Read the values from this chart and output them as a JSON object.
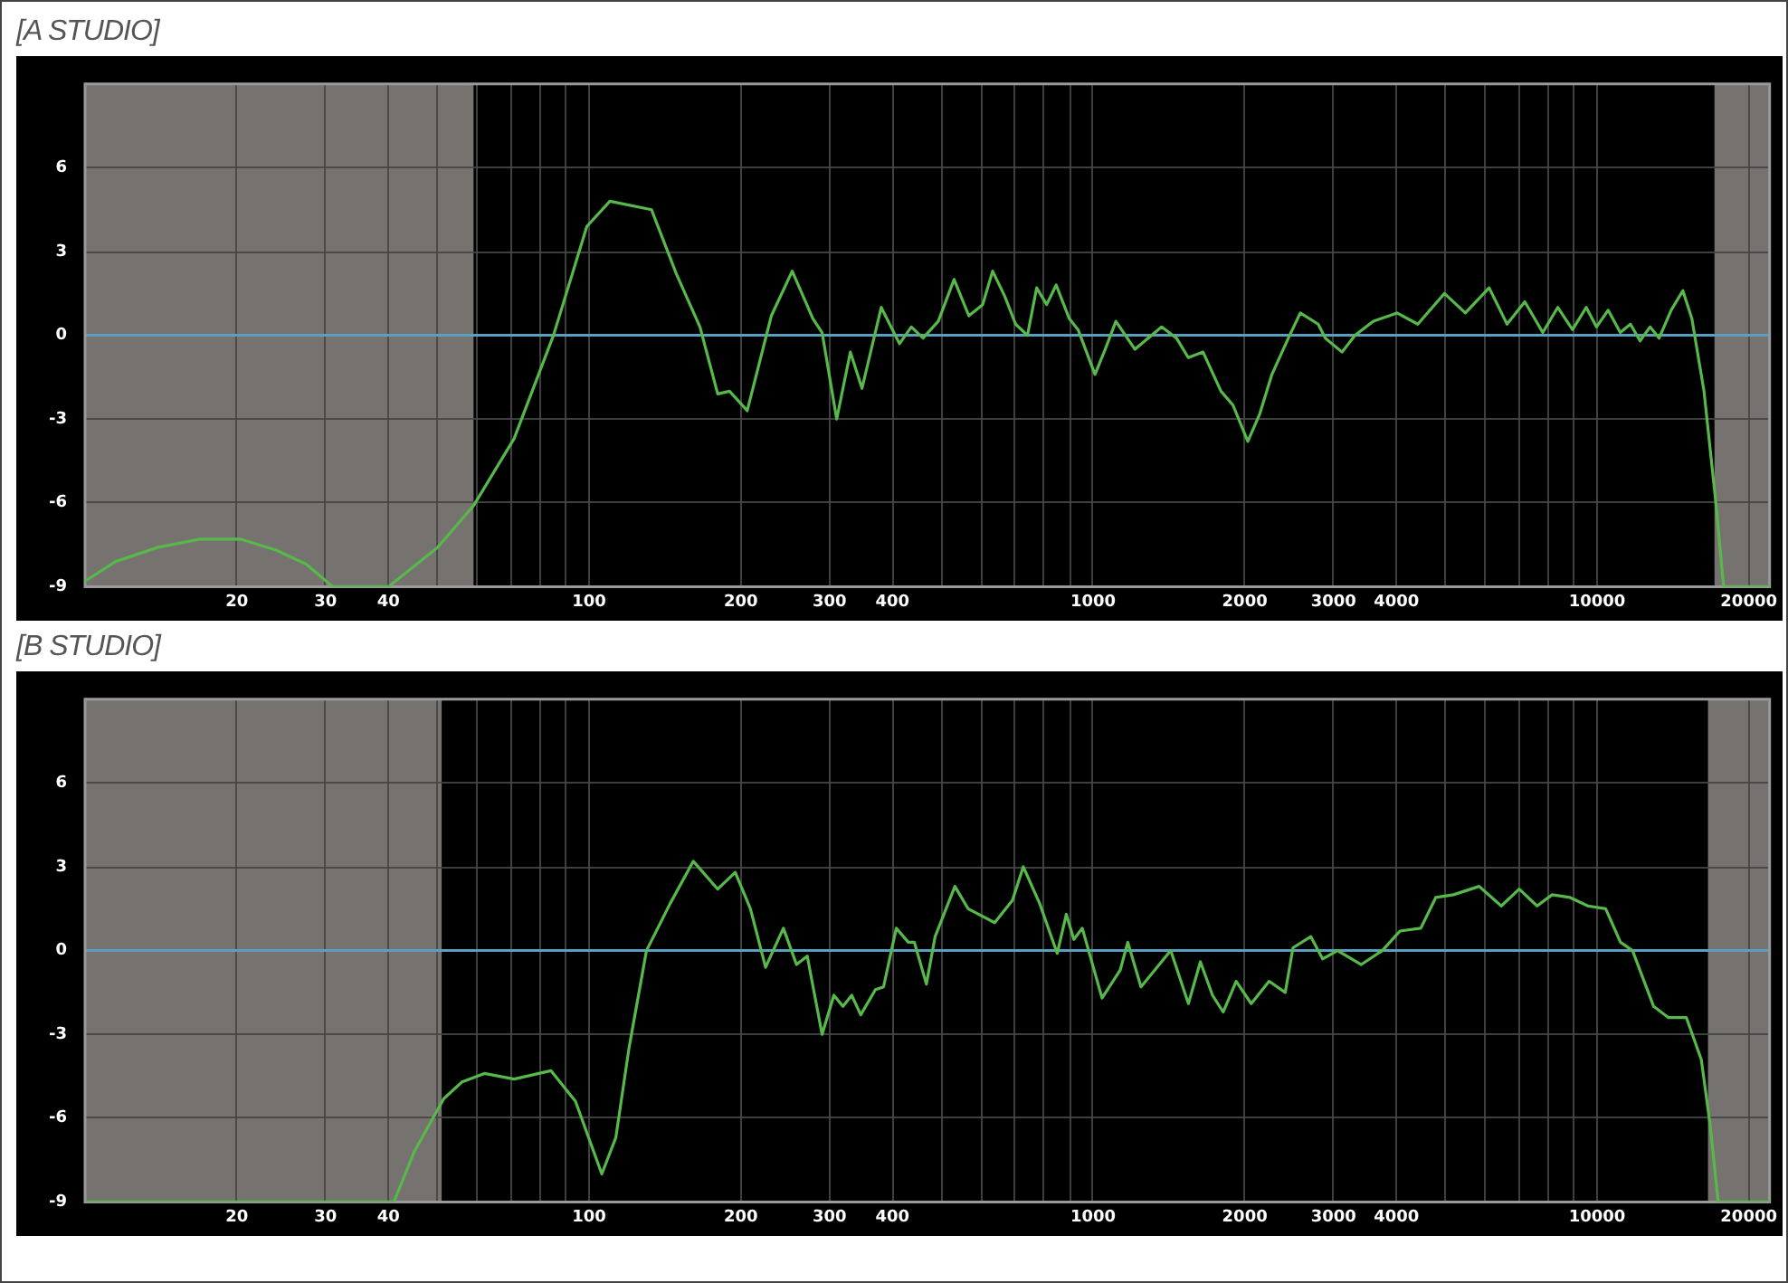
{
  "chart_data": [
    {
      "type": "line",
      "title": "[A STUDIO]",
      "log": "x",
      "grid": true,
      "legend": false,
      "marker": "none",
      "line_style": "solid",
      "xlim": [
        10,
        22000
      ],
      "ylim": [
        -9,
        9
      ],
      "yticks": [
        -9,
        -6,
        -3,
        0,
        3,
        6
      ],
      "xticks": [
        20,
        30,
        40,
        {
          "value": 50,
          "label": null
        },
        {
          "value": 60,
          "label": null
        },
        {
          "value": 70,
          "label": null
        },
        {
          "value": 80,
          "label": null
        },
        {
          "value": 90,
          "label": null
        },
        100,
        200,
        300,
        400,
        {
          "value": 500,
          "label": null
        },
        {
          "value": 600,
          "label": null
        },
        {
          "value": 700,
          "label": null
        },
        {
          "value": 800,
          "label": null
        },
        {
          "value": 900,
          "label": null
        },
        1000,
        2000,
        3000,
        4000,
        {
          "value": 5000,
          "label": null
        },
        {
          "value": 6000,
          "label": null
        },
        {
          "value": 7000,
          "label": null
        },
        {
          "value": 8000,
          "label": null
        },
        {
          "value": 9000,
          "label": null
        },
        10000,
        20000
      ],
      "bands": [
        {
          "axis": "x",
          "from": 10,
          "to": 59,
          "color": "#767270"
        },
        {
          "axis": "x",
          "from": 17100,
          "to": 22000,
          "color": "#767270"
        }
      ],
      "ref_lines": [
        {
          "axis": "y",
          "value": 0,
          "color": "#5b9fc0"
        }
      ],
      "series": [
        {
          "color": "#56b94a",
          "x": [
            10,
            11.5,
            13.9,
            16.9,
            20.4,
            24,
            27.5,
            31,
            40,
            50,
            59,
            71,
            85,
            99,
            110,
            133,
            149,
            166,
            180,
            190,
            206,
            230,
            253,
            278,
            290,
            310,
            330,
            348,
            380,
            413,
            436,
            460,
            493,
            530,
            567,
            604,
            632,
            668,
            702,
            741,
            773,
            809,
            845,
            897,
            934,
            1009,
            1057,
            1110,
            1211,
            1368,
            1464,
            1545,
            1653,
            1794,
            1895,
            2028,
            2143,
            2264,
            2455,
            2578,
            2797,
            2890,
            3119,
            3311,
            3594,
            4009,
            4409,
            4981,
            5478,
            6108,
            6629,
            7189,
            7804,
            8356,
            8939,
            9518,
            9972,
            10520,
            11120,
            11650,
            12170,
            12740,
            13280,
            14030,
            14800,
            15420,
            16300,
            17210,
            17830,
            22000
          ],
          "values": [
            -8.8,
            -8.1,
            -7.6,
            -7.3,
            -7.3,
            -7.7,
            -8.2,
            -9,
            -9,
            -7.6,
            -6.1,
            -3.7,
            0,
            3.9,
            4.8,
            4.5,
            2.2,
            0.3,
            -2.1,
            -2,
            -2.7,
            0.7,
            2.3,
            0.6,
            0.1,
            -3,
            -0.6,
            -1.9,
            1,
            -0.3,
            0.3,
            -0.1,
            0.5,
            2,
            0.7,
            1.1,
            2.3,
            1.4,
            0.4,
            0,
            1.7,
            1.1,
            1.8,
            0.6,
            0.2,
            -1.4,
            -0.5,
            0.5,
            -0.5,
            0.3,
            -0.1,
            -0.8,
            -0.6,
            -2,
            -2.5,
            -3.8,
            -2.8,
            -1.4,
            0,
            0.8,
            0.4,
            -0.1,
            -0.6,
            0,
            0.5,
            0.8,
            0.4,
            1.5,
            0.8,
            1.7,
            0.4,
            1.2,
            0.1,
            1,
            0.2,
            1,
            0.3,
            0.9,
            0.1,
            0.4,
            -0.2,
            0.3,
            -0.1,
            0.9,
            1.6,
            0.6,
            -2,
            -6,
            -9,
            -9
          ]
        }
      ]
    },
    {
      "type": "line",
      "title": "[B STUDIO]",
      "log": "x",
      "grid": true,
      "legend": false,
      "marker": "none",
      "line_style": "solid",
      "xlim": [
        10,
        22000
      ],
      "ylim": [
        -9,
        9
      ],
      "yticks": [
        -9,
        -6,
        -3,
        0,
        3,
        6
      ],
      "xticks": [
        20,
        30,
        40,
        {
          "value": 50,
          "label": null
        },
        {
          "value": 60,
          "label": null
        },
        {
          "value": 70,
          "label": null
        },
        {
          "value": 80,
          "label": null
        },
        {
          "value": 90,
          "label": null
        },
        100,
        200,
        300,
        400,
        {
          "value": 500,
          "label": null
        },
        {
          "value": 600,
          "label": null
        },
        {
          "value": 700,
          "label": null
        },
        {
          "value": 800,
          "label": null
        },
        {
          "value": 900,
          "label": null
        },
        1000,
        2000,
        3000,
        4000,
        {
          "value": 5000,
          "label": null
        },
        {
          "value": 6000,
          "label": null
        },
        {
          "value": 7000,
          "label": null
        },
        {
          "value": 8000,
          "label": null
        },
        {
          "value": 9000,
          "label": null
        },
        10000,
        20000
      ],
      "bands": [
        {
          "axis": "x",
          "from": 10,
          "to": 51,
          "color": "#767270"
        },
        {
          "axis": "x",
          "from": 16600,
          "to": 22000,
          "color": "#767270"
        }
      ],
      "ref_lines": [
        {
          "axis": "y",
          "value": 0,
          "color": "#5b9fc0"
        }
      ],
      "series": [
        {
          "color": "#56b94a",
          "x": [
            10,
            41,
            45,
            49,
            51.5,
            56,
            62,
            71,
            84,
            94,
            106,
            113,
            120,
            130,
            145,
            161,
            180,
            195,
            209,
            224,
            243,
            258,
            271,
            290,
            306,
            319,
            332,
            346,
            370,
            384,
            407,
            430,
            442,
            467,
            486,
            532,
            565,
            638,
            692,
            727,
            783,
            849,
            885,
            916,
            952,
            1042,
            1132,
            1172,
            1245,
            1426,
            1546,
            1633,
            1726,
            1812,
            1923,
            2060,
            2235,
            2406,
            2493,
            2705,
            2854,
            3055,
            3406,
            3749,
            4065,
            4470,
            4786,
            5190,
            5835,
            6456,
            7008,
            7604,
            8144,
            8840,
            9588,
            10400,
            11130,
            11760,
            12950,
            13860,
            15040,
            16100,
            16780,
            17390,
            22000
          ],
          "values": [
            -9,
            -9,
            -7.2,
            -6,
            -5.3,
            -4.7,
            -4.4,
            -4.6,
            -4.3,
            -5.4,
            -8,
            -6.7,
            -3.5,
            0,
            1.7,
            3.2,
            2.2,
            2.8,
            1.5,
            -0.6,
            0.8,
            -0.5,
            -0.2,
            -3,
            -1.6,
            -2,
            -1.6,
            -2.3,
            -1.4,
            -1.3,
            0.8,
            0.3,
            0.3,
            -1.2,
            0.5,
            2.3,
            1.5,
            1,
            1.8,
            3,
            1.7,
            -0.1,
            1.3,
            0.4,
            0.8,
            -1.7,
            -0.7,
            0.3,
            -1.3,
            0,
            -1.9,
            -0.4,
            -1.6,
            -2.2,
            -1.1,
            -1.9,
            -1.1,
            -1.5,
            0.1,
            0.5,
            -0.3,
            0,
            -0.5,
            0,
            0.7,
            0.8,
            1.9,
            2,
            2.3,
            1.6,
            2.2,
            1.6,
            2,
            1.9,
            1.6,
            1.5,
            0.3,
            0,
            -2,
            -2.4,
            -2.4,
            -3.9,
            -6.3,
            -9,
            -9
          ]
        }
      ]
    }
  ]
}
